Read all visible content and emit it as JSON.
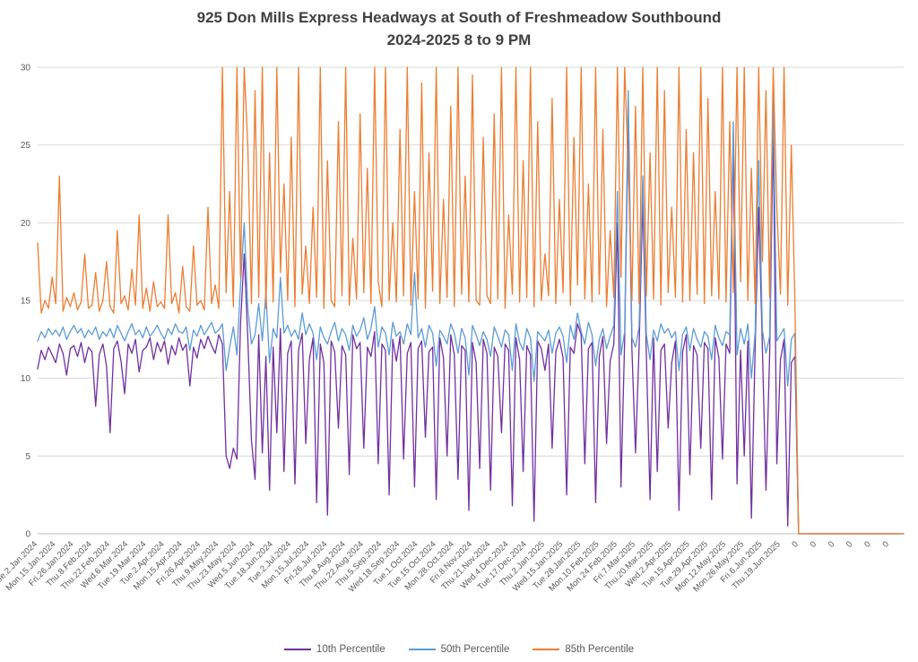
{
  "title": {
    "line1": "925 Don Mills Express Headways at South of Freshmeadow Southbound",
    "line2": "2024-2025 8 to 9 PM"
  },
  "legend": {
    "items": [
      {
        "label": "10th Percentile",
        "color": "#7030A0"
      },
      {
        "label": "50th Percentile",
        "color": "#5B9BD5"
      },
      {
        "label": "85th Percentile",
        "color": "#ED7D31"
      }
    ]
  },
  "chart_data": {
    "type": "line",
    "title": "925 Don Mills Express Headways at South of Freshmeadow Southbound 2024-2025 8 to 9 PM",
    "xlabel": "",
    "ylabel": "",
    "ylim": [
      0,
      30
    ],
    "yticks": [
      0,
      5,
      10,
      15,
      20,
      25,
      30
    ],
    "grid": "horizontal",
    "legend_position": "bottom",
    "tick_every": 5,
    "tick_labels": [
      "Tue.2.Jan.2024",
      "Mon.15.Jan.2024",
      "Fri.26.Jan.2024",
      "Thu.8.Feb.2024",
      "Thu.22.Feb.2024",
      "Wed.6.Mar.2024",
      "Tue.19.Mar.2024",
      "Tue.2.Apr.2024",
      "Mon.15.Apr.2024",
      "Fri.26.Apr.2024",
      "Thu.9.May.2024",
      "Thu.23.May.2024",
      "Wed.5.Jun.2024",
      "Tue.18.Jun.2024",
      "Tue.2.Jul.2024",
      "Mon.15.Jul.2024",
      "Fri.26.Jul.2024",
      "Thu.8.Aug.2024",
      "Thu.22.Aug.2024",
      "Thu.5.Sep.2024",
      "Wed.18.Sep.2024",
      "Tue.1.Oct.2024",
      "Tue.15.Oct.2024",
      "Mon.28.Oct.2024",
      "Fri.8.Nov.2024",
      "Thu.21.Nov.2024",
      "Wed.4.Dec.2024",
      "Tue.17.Dec.2024",
      "Thu.2.Jan.2025",
      "Wed.15.Jan.2025",
      "Tue.28.Jan.2025",
      "Mon.10.Feb.2025",
      "Mon.24.Feb.2025",
      "Fri.7.Mar.2025",
      "Thu.20.Mar.2025",
      "Wed.2.Apr.2025",
      "Tue.15.Apr.2025",
      "Tue.29.Apr.2025",
      "Mon.12.May.2025",
      "Mon.26.May.2025",
      "Fri.6.Jun.2025",
      "Thu.19.Jun.2025",
      "0",
      "0",
      "0",
      "0",
      "0",
      "0"
    ],
    "series": [
      {
        "name": "10th Percentile",
        "color": "#7030A0",
        "values": [
          10.6,
          11.8,
          11.2,
          12.0,
          11.5,
          11.0,
          12.2,
          11.6,
          10.2,
          11.9,
          12.1,
          11.4,
          12.3,
          11.0,
          12.0,
          11.7,
          8.2,
          11.5,
          12.2,
          10.8,
          6.5,
          11.9,
          12.4,
          11.1,
          9.0,
          12.2,
          11.6,
          12.5,
          10.4,
          11.8,
          12.0,
          12.6,
          11.2,
          12.3,
          11.7,
          12.4,
          10.9,
          12.1,
          11.5,
          12.6,
          11.8,
          12.2,
          9.5,
          12.0,
          11.3,
          12.5,
          11.9,
          12.7,
          12.1,
          11.6,
          12.8,
          12.2,
          5.0,
          4.2,
          5.5,
          4.8,
          13.5,
          18.0,
          12.6,
          6.0,
          3.5,
          12.8,
          5.2,
          11.4,
          2.8,
          12.0,
          6.5,
          13.2,
          4.0,
          11.6,
          12.4,
          3.2,
          11.8,
          12.9,
          5.8,
          11.2,
          12.6,
          2.0,
          12.2,
          11.0,
          1.2,
          12.4,
          11.7,
          6.8,
          12.1,
          11.5,
          3.8,
          12.8,
          11.9,
          12.3,
          5.5,
          12.0,
          11.4,
          13.0,
          4.5,
          12.2,
          11.8,
          2.5,
          12.5,
          11.1,
          12.7,
          4.8,
          11.6,
          12.3,
          3.0,
          11.9,
          12.4,
          6.2,
          11.7,
          12.0,
          2.2,
          12.6,
          11.3,
          5.0,
          12.8,
          11.5,
          3.5,
          12.1,
          11.8,
          1.5,
          12.3,
          11.0,
          4.2,
          12.5,
          11.6,
          2.8,
          12.0,
          11.4,
          6.5,
          12.2,
          11.8,
          1.8,
          12.6,
          11.2,
          4.0,
          12.1,
          11.5,
          0.8,
          12.4,
          11.9,
          10.5,
          12.2,
          5.5,
          11.7,
          12.5,
          11.3,
          2.5,
          12.0,
          11.6,
          13.5,
          12.8,
          4.5,
          11.9,
          12.3,
          2.0,
          11.4,
          12.7,
          5.8,
          11.1,
          12.2,
          20.0,
          3.0,
          12.5,
          27.0,
          11.8,
          5.2,
          12.0,
          21.5,
          11.5,
          2.2,
          12.6,
          4.0,
          11.8,
          12.2,
          6.8,
          11.0,
          12.4,
          1.5,
          11.7,
          12.8,
          3.8,
          12.1,
          11.5,
          5.5,
          12.3,
          11.9,
          2.2,
          12.6,
          11.3,
          4.8,
          12.2,
          11.6,
          25.5,
          3.2,
          11.8,
          5.0,
          12.4,
          1.0,
          11.9,
          21.0,
          12.0,
          2.8,
          11.5,
          26.0,
          4.5,
          11.2,
          12.5,
          0.5,
          11.0,
          11.4,
          0,
          0,
          0,
          0,
          0,
          0,
          0,
          0,
          0,
          0,
          0,
          0,
          0,
          0,
          0,
          0,
          0,
          0,
          0,
          0,
          0,
          0,
          0,
          0,
          0,
          0,
          0,
          0,
          0,
          0
        ]
      },
      {
        "name": "50th Percentile",
        "color": "#5B9BD5",
        "values": [
          12.4,
          13.0,
          12.6,
          13.2,
          12.8,
          13.1,
          12.7,
          13.3,
          12.5,
          13.0,
          13.4,
          12.9,
          13.2,
          12.6,
          13.1,
          12.8,
          13.3,
          12.5,
          13.0,
          12.7,
          13.2,
          12.6,
          13.4,
          12.9,
          12.4,
          13.0,
          13.5,
          12.8,
          13.1,
          12.6,
          13.3,
          12.7,
          13.0,
          13.4,
          12.9,
          12.5,
          13.2,
          12.8,
          13.5,
          13.0,
          12.9,
          13.3,
          11.8,
          13.1,
          12.7,
          13.4,
          12.8,
          13.2,
          13.6,
          12.9,
          13.1,
          13.5,
          10.5,
          12.0,
          13.3,
          11.5,
          16.0,
          20.0,
          14.5,
          12.2,
          12.8,
          14.8,
          12.4,
          15.5,
          11.0,
          13.2,
          12.6,
          16.5,
          12.9,
          13.4,
          12.7,
          13.1,
          12.5,
          14.2,
          12.8,
          13.5,
          12.9,
          11.2,
          13.3,
          12.6,
          12.2,
          13.0,
          13.6,
          12.4,
          13.2,
          12.8,
          11.8,
          13.4,
          12.7,
          13.1,
          13.9,
          12.5,
          13.2,
          14.6,
          12.0,
          13.3,
          12.9,
          11.5,
          13.6,
          12.7,
          13.0,
          12.2,
          13.5,
          12.8,
          16.8,
          12.6,
          13.2,
          12.0,
          13.4,
          12.9,
          10.8,
          13.1,
          12.7,
          12.2,
          13.5,
          12.9,
          11.6,
          13.2,
          12.6,
          10.2,
          13.4,
          12.8,
          12.1,
          13.0,
          12.5,
          11.4,
          13.3,
          12.7,
          12.0,
          13.1,
          12.8,
          10.5,
          13.5,
          12.3,
          11.8,
          13.2,
          12.6,
          9.8,
          13.0,
          12.7,
          12.4,
          13.1,
          11.6,
          12.9,
          13.3,
          12.7,
          11.0,
          13.4,
          12.5,
          14.2,
          13.0,
          12.2,
          13.6,
          12.8,
          10.8,
          12.5,
          13.2,
          11.9,
          12.7,
          13.4,
          22.0,
          11.5,
          13.0,
          28.5,
          12.6,
          12.0,
          13.3,
          23.0,
          12.8,
          11.2,
          13.1,
          12.4,
          13.5,
          12.9,
          13.2,
          12.6,
          13.0,
          10.5,
          12.8,
          13.3,
          11.8,
          13.2,
          12.5,
          12.0,
          13.0,
          12.7,
          11.2,
          13.4,
          12.6,
          12.1,
          13.0,
          12.8,
          26.5,
          11.5,
          13.2,
          12.2,
          13.5,
          10.0,
          12.9,
          24.0,
          13.1,
          11.6,
          12.7,
          28.0,
          12.4,
          12.8,
          13.2,
          9.5,
          12.5,
          12.9,
          0,
          0,
          0,
          0,
          0,
          0,
          0,
          0,
          0,
          0,
          0,
          0,
          0,
          0,
          0,
          0,
          0,
          0,
          0,
          0,
          0,
          0,
          0,
          0,
          0,
          0,
          0,
          0,
          0,
          0
        ]
      },
      {
        "name": "85th Percentile",
        "color": "#ED7D31",
        "values": [
          18.7,
          14.2,
          15.0,
          14.5,
          16.5,
          14.8,
          23.0,
          14.3,
          15.2,
          14.6,
          15.5,
          14.4,
          14.9,
          18.0,
          14.5,
          14.7,
          16.8,
          14.3,
          15.0,
          17.5,
          14.6,
          14.2,
          19.5,
          14.8,
          15.3,
          14.4,
          17.0,
          14.7,
          20.5,
          14.5,
          15.8,
          14.3,
          16.2,
          14.6,
          14.9,
          14.5,
          20.5,
          14.8,
          15.5,
          14.2,
          17.2,
          14.6,
          14.3,
          18.5,
          14.7,
          15.0,
          14.4,
          21.0,
          14.8,
          16.0,
          14.5,
          30.0,
          15.5,
          22.0,
          14.6,
          30.0,
          16.5,
          30.0,
          25.0,
          14.8,
          28.5,
          15.2,
          30.0,
          14.5,
          24.5,
          14.9,
          30.0,
          16.8,
          22.5,
          15.0,
          25.5,
          14.6,
          30.0,
          15.4,
          18.5,
          14.8,
          21.0,
          15.2,
          30.0,
          14.5,
          24.0,
          15.0,
          14.6,
          26.5,
          15.3,
          30.0,
          14.7,
          19.0,
          15.1,
          27.0,
          15.5,
          23.5,
          14.8,
          30.0,
          16.2,
          14.6,
          30.0,
          15.0,
          20.0,
          14.9,
          26.0,
          15.3,
          30.0,
          14.7,
          22.0,
          15.1,
          29.0,
          14.5,
          24.5,
          15.6,
          30.0,
          14.8,
          21.5,
          15.2,
          27.5,
          14.6,
          30.0,
          15.4,
          23.0,
          14.9,
          29.5,
          15.0,
          14.7,
          25.5,
          15.3,
          14.8,
          27.0,
          15.1,
          30.0,
          14.5,
          20.5,
          15.4,
          30.0,
          14.9,
          24.0,
          15.2,
          30.0,
          14.6,
          26.5,
          15.0,
          18.0,
          15.3,
          28.0,
          14.8,
          21.5,
          15.5,
          30.0,
          14.7,
          25.5,
          16.0,
          30.0,
          15.1,
          22.5,
          14.9,
          30.0,
          15.4,
          26.0,
          14.6,
          19.5,
          15.2,
          30.0,
          16.5,
          30.0,
          23.5,
          15.0,
          27.5,
          14.8,
          30.0,
          15.3,
          24.5,
          15.1,
          30.0,
          14.7,
          28.5,
          15.5,
          21.0,
          15.2,
          30.0,
          14.9,
          26.0,
          15.0,
          24.5,
          15.4,
          30.0,
          14.8,
          28.0,
          15.3,
          22.0,
          15.1,
          30.0,
          14.9,
          26.5,
          15.5,
          30.0,
          16.2,
          30.0,
          15.0,
          23.5,
          14.8,
          30.0,
          17.5,
          28.5,
          15.2,
          30.0,
          21.0,
          15.4,
          30.0,
          14.7,
          25.0,
          14.9,
          0,
          0,
          0,
          0,
          0,
          0,
          0,
          0,
          0,
          0,
          0,
          0,
          0,
          0,
          0,
          0,
          0,
          0,
          0,
          0,
          0,
          0,
          0,
          0,
          0,
          0,
          0,
          0,
          0,
          0
        ]
      }
    ]
  }
}
